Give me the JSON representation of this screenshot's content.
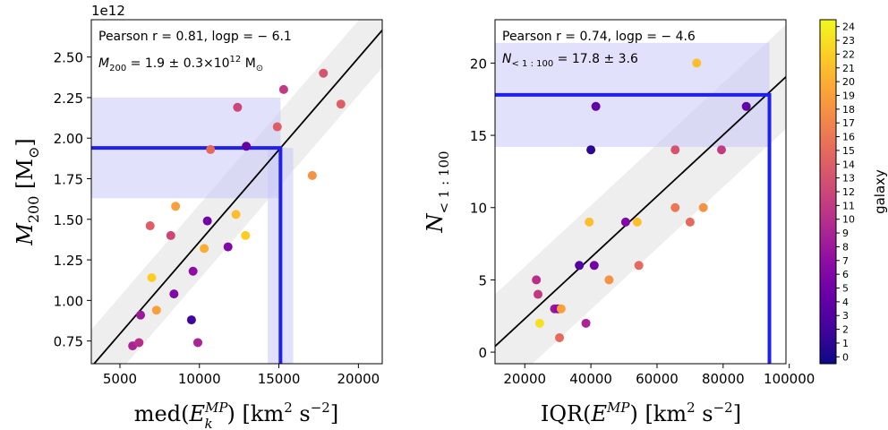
{
  "chart_data": [
    {
      "type": "scatter",
      "panel": "left",
      "xlabel_main": "med(",
      "xlabel_sym": "E",
      "xlabel_sup": "MP",
      "xlabel_sub": "k",
      "xlabel_rest": ") [km",
      "xlabel_unit_sup": "2",
      "xlabel_unit_rest": " s",
      "xlabel_unit_sup2": "−2",
      "xlabel_close": "]",
      "ylabel_sym": "M",
      "ylabel_sub": "200",
      "ylabel_unit": " [M",
      "ylabel_unit_sub": "⊙",
      "ylabel_close": "]",
      "offset_text": "1e12",
      "xlim": [
        3200,
        21500
      ],
      "ylim": [
        0.61,
        2.73
      ],
      "xticks": [
        5000,
        10000,
        15000,
        20000
      ],
      "xtick_labels": [
        "5000",
        "10000",
        "15000",
        "20000"
      ],
      "yticks": [
        0.75,
        1.0,
        1.25,
        1.5,
        1.75,
        2.0,
        2.25,
        2.5
      ],
      "ytick_labels": [
        "0.75",
        "1.00",
        "1.25",
        "1.50",
        "1.75",
        "2.00",
        "2.25",
        "2.50"
      ],
      "annotation_1": "Pearson r = 0.81, logp = − 6.1",
      "annotation_2_sym": "M",
      "annotation_2_sub": "200",
      "annotation_2_rest": " = 1.9 ± 0.3×10",
      "annotation_2_sup": "12",
      "annotation_2_unit": " M",
      "annotation_2_unit_sub": "⊙",
      "fit_line": {
        "x": [
          3200,
          21500
        ],
        "y": [
          0.59,
          2.665
        ]
      },
      "band_halfwidth": 0.23,
      "highlight": {
        "x": 15100,
        "x_range": [
          14300,
          15900
        ],
        "y": 1.94,
        "y_range": [
          1.63,
          2.25
        ]
      },
      "points": [
        {
          "x": 5800,
          "y": 0.72,
          "galaxy": 9
        },
        {
          "x": 6200,
          "y": 0.74,
          "galaxy": 10
        },
        {
          "x": 6300,
          "y": 0.91,
          "galaxy": 8
        },
        {
          "x": 6900,
          "y": 1.46,
          "galaxy": 14
        },
        {
          "x": 7000,
          "y": 1.14,
          "galaxy": 22
        },
        {
          "x": 7300,
          "y": 0.94,
          "galaxy": 19
        },
        {
          "x": 8200,
          "y": 1.4,
          "galaxy": 12
        },
        {
          "x": 8400,
          "y": 1.04,
          "galaxy": 6
        },
        {
          "x": 8500,
          "y": 1.58,
          "galaxy": 19
        },
        {
          "x": 9500,
          "y": 0.88,
          "galaxy": 2
        },
        {
          "x": 9600,
          "y": 1.18,
          "galaxy": 7
        },
        {
          "x": 9900,
          "y": 0.74,
          "galaxy": 9
        },
        {
          "x": 10300,
          "y": 1.32,
          "galaxy": 20
        },
        {
          "x": 10500,
          "y": 1.49,
          "galaxy": 5
        },
        {
          "x": 10700,
          "y": 1.93,
          "galaxy": 15
        },
        {
          "x": 11800,
          "y": 1.33,
          "galaxy": 6
        },
        {
          "x": 12300,
          "y": 1.53,
          "galaxy": 21
        },
        {
          "x": 12400,
          "y": 2.19,
          "galaxy": 12
        },
        {
          "x": 12900,
          "y": 1.4,
          "galaxy": 22
        },
        {
          "x": 12950,
          "y": 1.95,
          "galaxy": 4
        },
        {
          "x": 14900,
          "y": 2.07,
          "galaxy": 14
        },
        {
          "x": 15300,
          "y": 2.3,
          "galaxy": 11
        },
        {
          "x": 17100,
          "y": 1.77,
          "galaxy": 18
        },
        {
          "x": 17800,
          "y": 2.4,
          "galaxy": 13
        },
        {
          "x": 18900,
          "y": 2.21,
          "galaxy": 14
        }
      ]
    },
    {
      "type": "scatter",
      "panel": "right",
      "xlabel_main": "IQR(",
      "xlabel_sym": "E",
      "xlabel_sup": "MP",
      "xlabel_rest": ") [km",
      "xlabel_unit_sup": "2",
      "xlabel_unit_rest": " s",
      "xlabel_unit_sup2": "−2",
      "xlabel_close": "]",
      "ylabel_sym": "N",
      "ylabel_sub": "< 1 : 100",
      "xlim": [
        11000,
        99000
      ],
      "ylim": [
        -0.8,
        23.0
      ],
      "xticks": [
        20000,
        40000,
        60000,
        80000,
        100000
      ],
      "xtick_labels": [
        "20000",
        "40000",
        "60000",
        "80000",
        "100000"
      ],
      "yticks": [
        0,
        5,
        10,
        15,
        20
      ],
      "ytick_labels": [
        "0",
        "5",
        "10",
        "15",
        "20"
      ],
      "annotation_1": "Pearson r = 0.74, logp = − 4.6",
      "annotation_2_sym": "N",
      "annotation_2_sub": "< 1 : 100",
      "annotation_2_rest": " = 17.8 ± 3.6",
      "fit_line": {
        "x": [
          11000,
          99000
        ],
        "y": [
          0.4,
          19.05
        ]
      },
      "band_halfwidth": 3.6,
      "highlight": {
        "x": 94000,
        "y": 17.8,
        "y_range": [
          14.2,
          21.4
        ]
      },
      "points": [
        {
          "x": 23500,
          "y": 5,
          "galaxy": 10
        },
        {
          "x": 24000,
          "y": 4,
          "galaxy": 11
        },
        {
          "x": 24500,
          "y": 2,
          "galaxy": 23
        },
        {
          "x": 29000,
          "y": 3,
          "galaxy": 8
        },
        {
          "x": 30000,
          "y": 3,
          "galaxy": 7
        },
        {
          "x": 30500,
          "y": 1,
          "galaxy": 15
        },
        {
          "x": 31000,
          "y": 3,
          "galaxy": 19
        },
        {
          "x": 36500,
          "y": 6,
          "galaxy": 3
        },
        {
          "x": 38500,
          "y": 2,
          "galaxy": 9
        },
        {
          "x": 39500,
          "y": 9,
          "galaxy": 21
        },
        {
          "x": 40000,
          "y": 14,
          "galaxy": 1
        },
        {
          "x": 41000,
          "y": 6,
          "galaxy": 5
        },
        {
          "x": 41500,
          "y": 17,
          "galaxy": 4
        },
        {
          "x": 45500,
          "y": 5,
          "galaxy": 18
        },
        {
          "x": 50500,
          "y": 9,
          "galaxy": 6
        },
        {
          "x": 54000,
          "y": 9,
          "galaxy": 21
        },
        {
          "x": 54500,
          "y": 6,
          "galaxy": 15
        },
        {
          "x": 65500,
          "y": 14,
          "galaxy": 13
        },
        {
          "x": 65500,
          "y": 10,
          "galaxy": 16
        },
        {
          "x": 70000,
          "y": 9,
          "galaxy": 15
        },
        {
          "x": 72000,
          "y": 20,
          "galaxy": 21
        },
        {
          "x": 74000,
          "y": 10,
          "galaxy": 18
        },
        {
          "x": 79500,
          "y": 14,
          "galaxy": 11
        },
        {
          "x": 87000,
          "y": 17,
          "galaxy": 4
        }
      ]
    }
  ],
  "colorbar": {
    "label": "galaxy",
    "min": -0.5,
    "max": 24.5,
    "ticks": [
      0,
      1,
      2,
      3,
      4,
      5,
      6,
      7,
      8,
      9,
      10,
      11,
      12,
      13,
      14,
      15,
      16,
      17,
      18,
      19,
      20,
      21,
      22,
      23,
      24
    ],
    "tick_labels": [
      "0",
      "1",
      "2",
      "3",
      "4",
      "5",
      "6",
      "7",
      "8",
      "9",
      "10",
      "11",
      "12",
      "13",
      "14",
      "15",
      "16",
      "17",
      "18",
      "19",
      "20",
      "21",
      "22",
      "23",
      "24"
    ],
    "colormap": "plasma"
  },
  "colors": {
    "band": "#d9d9d9",
    "highlight_fill": "#c8c8f8",
    "highlight_line": "#1f1fee",
    "fit_line": "#000000"
  }
}
